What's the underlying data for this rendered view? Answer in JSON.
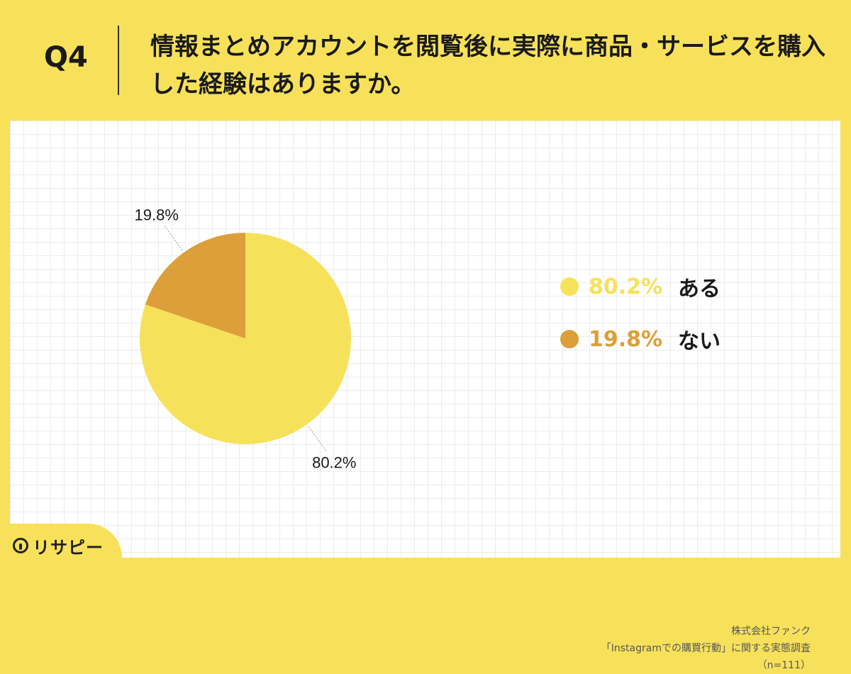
{
  "question_label": "Q4",
  "title": "情報まとめアカウントを閲覧後に実際に商品・サービスを購入した経験はありますか。",
  "chart_data": {
    "type": "pie",
    "slices": [
      {
        "label": "ある",
        "value": 80.2,
        "display": "80.2%",
        "color": "#f6e15a"
      },
      {
        "label": "ない",
        "value": 19.8,
        "display": "19.8%",
        "color": "#dc9f39"
      }
    ]
  },
  "legend": [
    {
      "value": "80.2%",
      "label": "ある",
      "color": "#f6e15a"
    },
    {
      "value": "19.8%",
      "label": "ない",
      "color": "#dc9f39"
    }
  ],
  "source": {
    "line1": "株式会社ファンク",
    "line2": "「Instagramでの購買行動」に関する実態調査",
    "line3": "（n=111）"
  },
  "brand": {
    "name": "リサピー",
    "icon": "pin-icon"
  }
}
